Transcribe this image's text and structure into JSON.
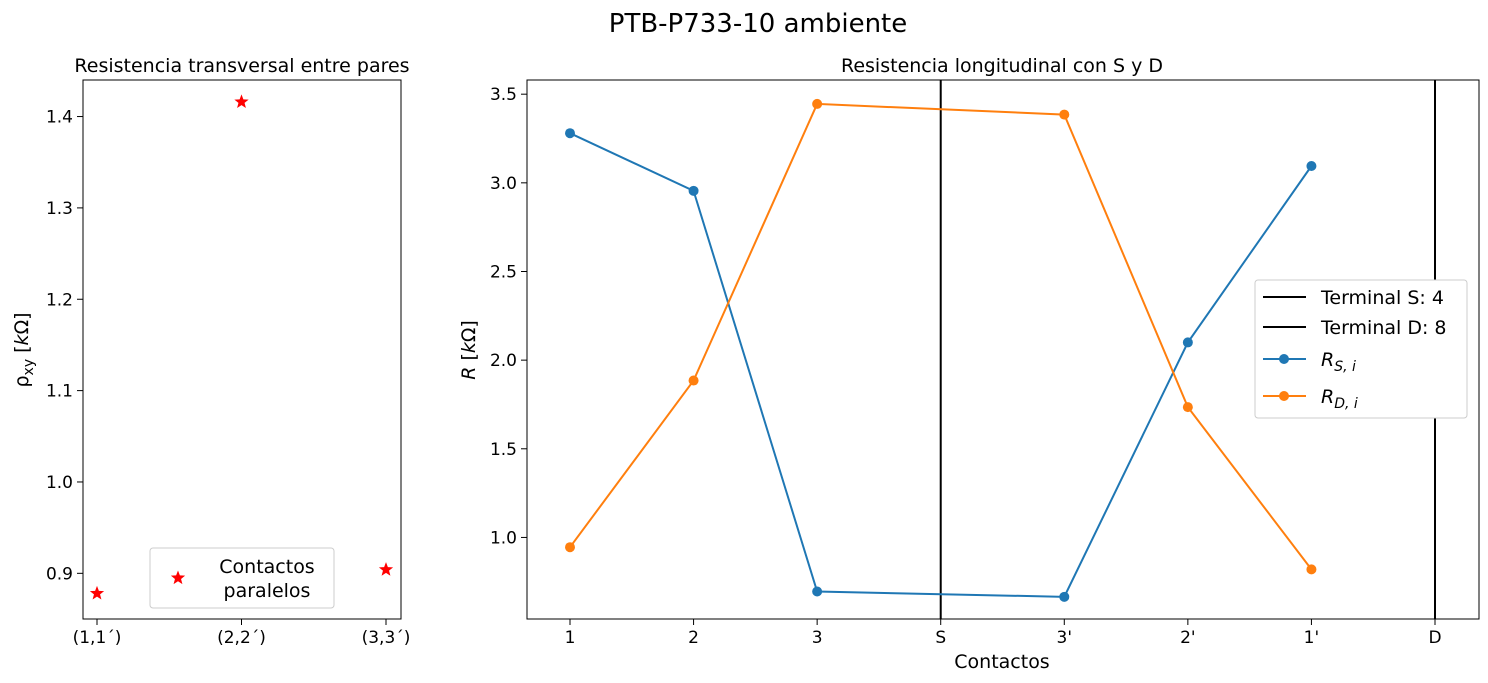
{
  "figure": {
    "suptitle": "PTB-P733-10 ambiente"
  },
  "chart_data": [
    {
      "type": "scatter",
      "title": "Resistencia transversal entre pares",
      "xlabel": "",
      "ylabel": "ρ_xy [kΩ]",
      "categories": [
        "(1,1´)",
        "(2,2´)",
        "(3,3´)"
      ],
      "ylim": [
        0.85,
        1.44
      ],
      "yticks": [
        "0.9",
        "1.0",
        "1.1",
        "1.2",
        "1.3",
        "1.4"
      ],
      "series": [
        {
          "name": "Contactos paralelos",
          "marker": "star",
          "color": "#ff0000",
          "values": [
            0.878,
            1.416,
            0.904
          ]
        }
      ],
      "legend": {
        "position": "lower-center",
        "lines": [
          "Contactos",
          "paralelos"
        ]
      },
      "grid": false
    },
    {
      "type": "line",
      "title": "Resistencia longitudinal con S y D",
      "xlabel": "Contactos",
      "ylabel": "R [kΩ]",
      "categories": [
        "1",
        "2",
        "3",
        "S",
        "3'",
        "2'",
        "1'",
        "D"
      ],
      "ylim": [
        0.54,
        3.58
      ],
      "yticks": [
        "1.0",
        "1.5",
        "2.0",
        "2.5",
        "3.0",
        "3.5"
      ],
      "vlines": [
        {
          "name": "Terminal S: 4",
          "at": "S",
          "color": "#000000"
        },
        {
          "name": "Terminal D: 8",
          "at": "D",
          "color": "#000000"
        }
      ],
      "series": [
        {
          "name": "R_S,i",
          "color": "#1f77b4",
          "marker": "circle",
          "x": [
            "1",
            "2",
            "3",
            "3'",
            "2'",
            "1'"
          ],
          "values": [
            3.28,
            2.955,
            0.695,
            0.665,
            2.1,
            3.095
          ]
        },
        {
          "name": "R_D,i",
          "color": "#ff7f0e",
          "marker": "circle",
          "x": [
            "1",
            "2",
            "3",
            "3'",
            "2'",
            "1'"
          ],
          "values": [
            0.945,
            1.885,
            3.445,
            3.385,
            1.735,
            0.82
          ]
        }
      ],
      "legend": {
        "position": "center-right"
      },
      "grid": false
    }
  ]
}
